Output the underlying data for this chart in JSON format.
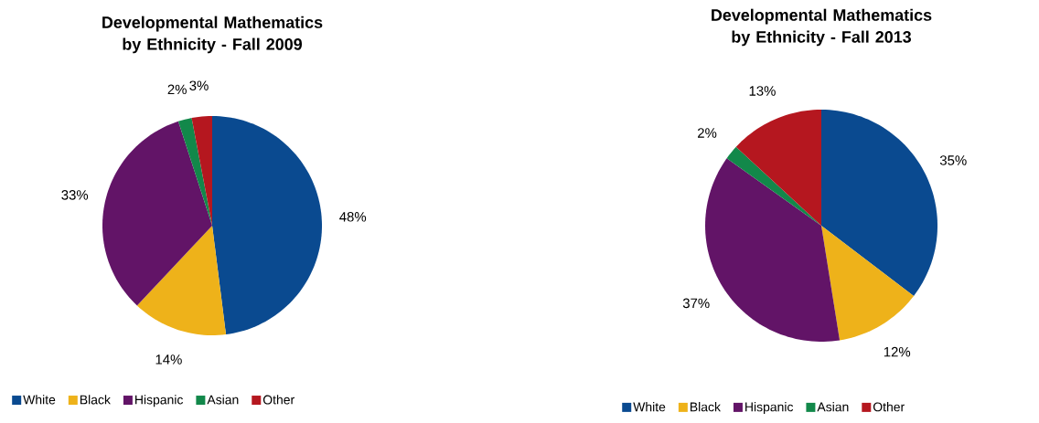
{
  "chart_data": [
    {
      "type": "pie",
      "title": "Developmental Mathematics by Ethnicity - Fall 2009",
      "categories": [
        "White",
        "Black",
        "Hispanic",
        "Asian",
        "Other"
      ],
      "values": [
        48,
        14,
        33,
        2,
        3
      ],
      "value_labels": [
        "48%",
        "14%",
        "33%",
        "2%",
        "3%"
      ],
      "colors": [
        "#0a4a90",
        "#eeb21a",
        "#621467",
        "#12884a",
        "#b5171f"
      ],
      "legend": "bottom"
    },
    {
      "type": "pie",
      "title": "Developmental Mathematics by Ethnicity - Fall 2013",
      "categories": [
        "White",
        "Black",
        "Hispanic",
        "Asian",
        "Other"
      ],
      "values": [
        35,
        12,
        37,
        2,
        13
      ],
      "value_labels": [
        "35%",
        "12%",
        "37%",
        "2%",
        "13%"
      ],
      "colors": [
        "#0a4a90",
        "#eeb21a",
        "#621467",
        "#12884a",
        "#b5171f"
      ],
      "legend": "bottom"
    }
  ]
}
